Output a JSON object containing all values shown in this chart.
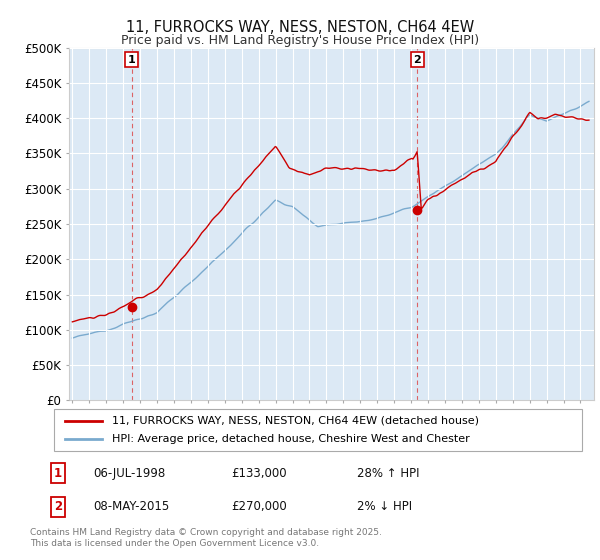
{
  "title": "11, FURROCKS WAY, NESS, NESTON, CH64 4EW",
  "subtitle": "Price paid vs. HM Land Registry's House Price Index (HPI)",
  "ylabel_ticks": [
    "£0",
    "£50K",
    "£100K",
    "£150K",
    "£200K",
    "£250K",
    "£300K",
    "£350K",
    "£400K",
    "£450K",
    "£500K"
  ],
  "ytick_vals": [
    0,
    50000,
    100000,
    150000,
    200000,
    250000,
    300000,
    350000,
    400000,
    450000,
    500000
  ],
  "ylim": [
    0,
    500000
  ],
  "xlim_start": 1994.8,
  "xlim_end": 2025.8,
  "red_color": "#cc0000",
  "blue_color": "#7aaace",
  "vline_color": "#dd5555",
  "vline_style": "--",
  "point1_x": 1998.51,
  "point1_y": 133000,
  "point1_label": "1",
  "point2_x": 2015.36,
  "point2_y": 270000,
  "point2_label": "2",
  "legend_line1": "11, FURROCKS WAY, NESS, NESTON, CH64 4EW (detached house)",
  "legend_line2": "HPI: Average price, detached house, Cheshire West and Chester",
  "annotation1_num": "1",
  "annotation1_date": "06-JUL-1998",
  "annotation1_price": "£133,000",
  "annotation1_hpi": "28% ↑ HPI",
  "annotation2_num": "2",
  "annotation2_date": "08-MAY-2015",
  "annotation2_price": "£270,000",
  "annotation2_hpi": "2% ↓ HPI",
  "footnote": "Contains HM Land Registry data © Crown copyright and database right 2025.\nThis data is licensed under the Open Government Licence v3.0.",
  "bg_color": "#ffffff",
  "plot_bg_color": "#dce9f5",
  "grid_color": "#ffffff"
}
